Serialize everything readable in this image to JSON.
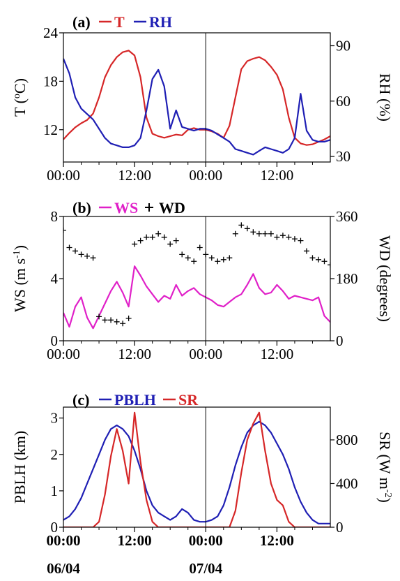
{
  "chart_data": [
    {
      "panel_tag": "(a)",
      "type": "line",
      "legend": [
        {
          "name": "T",
          "color": "#d62728",
          "marker": "line"
        },
        {
          "name": "RH",
          "color": "#1f1fb4",
          "marker": "line"
        }
      ],
      "x_ticks": [
        "00:00",
        "12:00",
        "00:00",
        "12:00"
      ],
      "x_range_hours": [
        0,
        45
      ],
      "ylabel_left": {
        "main": "T (",
        "sup": "o",
        "rest": "C)"
      },
      "ylabel_right": "RH (%)",
      "yticks_left": [
        "12",
        "18",
        "24"
      ],
      "yticks_right": [
        "30",
        "60",
        "90"
      ],
      "ylim_left": [
        8,
        24
      ],
      "ylim_right": [
        27,
        97
      ],
      "series": [
        {
          "name": "T",
          "axis": "left",
          "color": "#d62728",
          "x": [
            0,
            1,
            2,
            3,
            4,
            5,
            6,
            7,
            8,
            9,
            10,
            11,
            12,
            13,
            14,
            15,
            16,
            17,
            18,
            19,
            20,
            21,
            22,
            23,
            24,
            25,
            26,
            27,
            28,
            29,
            30,
            31,
            32,
            33,
            34,
            35,
            36,
            37,
            38,
            39,
            40,
            41,
            42,
            43,
            44,
            45
          ],
          "y": [
            10.8,
            11.6,
            12.3,
            12.8,
            13.2,
            14.0,
            16.0,
            18.5,
            20.0,
            21.0,
            21.6,
            21.8,
            21.2,
            18.5,
            13.5,
            11.5,
            11.2,
            11.0,
            11.2,
            11.4,
            11.3,
            12.0,
            12.2,
            12.0,
            12.0,
            11.8,
            11.5,
            11.0,
            12.5,
            16.0,
            19.5,
            20.5,
            20.8,
            21.0,
            20.6,
            19.8,
            18.8,
            17.0,
            13.5,
            11.0,
            10.3,
            10.1,
            10.2,
            10.5,
            10.8,
            11.2
          ]
        },
        {
          "name": "RH",
          "axis": "right",
          "color": "#1f1fb4",
          "x": [
            0,
            1,
            2,
            3,
            4,
            5,
            6,
            7,
            8,
            9,
            10,
            11,
            12,
            13,
            14,
            15,
            16,
            17,
            18,
            19,
            20,
            21,
            22,
            23,
            24,
            25,
            26,
            27,
            28,
            29,
            30,
            31,
            32,
            33,
            34,
            35,
            36,
            37,
            38,
            39,
            40,
            41,
            42,
            43,
            44,
            45
          ],
          "y": [
            83,
            75,
            62,
            56,
            53,
            50,
            45,
            40,
            37,
            36,
            35,
            35,
            36,
            40,
            55,
            72,
            77,
            68,
            45,
            55,
            46,
            45,
            44,
            45,
            45,
            44,
            42,
            40,
            38,
            34,
            33,
            32,
            31,
            33,
            35,
            34,
            33,
            32,
            34,
            40,
            64,
            44,
            39,
            38,
            38,
            39
          ]
        }
      ]
    },
    {
      "panel_tag": "(b)",
      "type": "line",
      "legend": [
        {
          "name": "WS",
          "color": "#e020c8",
          "marker": "line"
        },
        {
          "name": "WD",
          "color": "#000000",
          "marker": "+"
        }
      ],
      "x_ticks": [
        "00:00",
        "12:00",
        "00:00",
        "12:00"
      ],
      "x_range_hours": [
        0,
        45
      ],
      "ylabel_left": {
        "main": "WS (m s",
        "sup": "-1",
        "rest": ")"
      },
      "ylabel_right": "WD (degrees)",
      "yticks_left": [
        "0",
        "4",
        "8"
      ],
      "yticks_right": [
        "0",
        "180",
        "360"
      ],
      "ylim_left": [
        0,
        8
      ],
      "ylim_right": [
        0,
        360
      ],
      "series": [
        {
          "name": "WS",
          "axis": "left",
          "color": "#e020c8",
          "x": [
            0,
            1,
            2,
            3,
            4,
            5,
            6,
            7,
            8,
            9,
            10,
            11,
            12,
            13,
            14,
            15,
            16,
            17,
            18,
            19,
            20,
            21,
            22,
            23,
            24,
            25,
            26,
            27,
            28,
            29,
            30,
            31,
            32,
            33,
            34,
            35,
            36,
            37,
            38,
            39,
            40,
            41,
            42,
            43,
            44,
            45
          ],
          "y": [
            1.8,
            0.9,
            2.2,
            2.8,
            1.5,
            0.8,
            1.6,
            2.4,
            3.2,
            3.8,
            3.1,
            2.2,
            4.8,
            4.2,
            3.5,
            3.0,
            2.5,
            2.9,
            2.7,
            3.6,
            2.9,
            3.2,
            3.4,
            3.0,
            2.8,
            2.6,
            2.3,
            2.2,
            2.5,
            2.8,
            3.0,
            3.6,
            4.3,
            3.4,
            3.0,
            3.1,
            3.6,
            3.2,
            2.7,
            2.9,
            2.8,
            2.7,
            2.6,
            2.8,
            1.6,
            1.2
          ]
        },
        {
          "name": "WD",
          "axis": "right",
          "color": "#000000",
          "marker": "+",
          "x": [
            0,
            1,
            2,
            3,
            4,
            5,
            6,
            7,
            8,
            9,
            10,
            11,
            12,
            13,
            14,
            15,
            16,
            17,
            18,
            19,
            20,
            21,
            22,
            23,
            24,
            25,
            26,
            27,
            28,
            29,
            30,
            31,
            32,
            33,
            34,
            35,
            36,
            37,
            38,
            39,
            40,
            41,
            42,
            43,
            44,
            45
          ],
          "y": [
            320,
            270,
            260,
            250,
            245,
            240,
            70,
            60,
            60,
            55,
            50,
            65,
            280,
            290,
            300,
            300,
            310,
            300,
            280,
            290,
            250,
            240,
            230,
            270,
            250,
            240,
            230,
            235,
            240,
            310,
            335,
            325,
            315,
            310,
            310,
            310,
            300,
            305,
            300,
            295,
            290,
            260,
            240,
            235,
            230,
            220
          ]
        }
      ]
    },
    {
      "panel_tag": "(c)",
      "type": "line",
      "legend": [
        {
          "name": "PBLH",
          "color": "#1f1fb4",
          "marker": "line"
        },
        {
          "name": "SR",
          "color": "#d62728",
          "marker": "line"
        }
      ],
      "x_ticks": [
        "00:00",
        "12:00",
        "00:00",
        "12:00"
      ],
      "x_ticks_bold": true,
      "date_labels": [
        {
          "text": "06/04",
          "at_hour": 0
        },
        {
          "text": "07/04",
          "at_hour": 24
        }
      ],
      "x_range_hours": [
        0,
        45
      ],
      "ylabel_left": "PBLH (km)",
      "ylabel_right": {
        "main": "SR (W m",
        "sup": "-2",
        "rest": ")"
      },
      "yticks_left": [
        "0",
        "1",
        "2",
        "3"
      ],
      "yticks_right": [
        "0",
        "400",
        "800"
      ],
      "ylim_left": [
        0,
        3.3
      ],
      "ylim_right": [
        0,
        1100
      ],
      "series": [
        {
          "name": "PBLH",
          "axis": "left",
          "color": "#1f1fb4",
          "x": [
            0,
            1,
            2,
            3,
            4,
            5,
            6,
            7,
            8,
            9,
            10,
            11,
            12,
            13,
            14,
            15,
            16,
            17,
            18,
            19,
            20,
            21,
            22,
            23,
            24,
            25,
            26,
            27,
            28,
            29,
            30,
            31,
            32,
            33,
            34,
            35,
            36,
            37,
            38,
            39,
            40,
            41,
            42,
            43,
            44,
            45
          ],
          "y": [
            0.2,
            0.3,
            0.5,
            0.8,
            1.2,
            1.6,
            2.0,
            2.4,
            2.7,
            2.8,
            2.7,
            2.5,
            2.1,
            1.6,
            1.0,
            0.6,
            0.4,
            0.3,
            0.2,
            0.3,
            0.5,
            0.4,
            0.2,
            0.15,
            0.15,
            0.2,
            0.3,
            0.6,
            1.1,
            1.7,
            2.2,
            2.6,
            2.8,
            2.9,
            2.8,
            2.6,
            2.3,
            2.0,
            1.6,
            1.1,
            0.7,
            0.4,
            0.2,
            0.1,
            0.1,
            0.1
          ]
        },
        {
          "name": "SR",
          "axis": "right",
          "color": "#d62728",
          "x": [
            0,
            1,
            2,
            3,
            4,
            5,
            6,
            7,
            8,
            9,
            10,
            11,
            12,
            13,
            14,
            15,
            16,
            17,
            18,
            19,
            20,
            21,
            22,
            23,
            24,
            25,
            26,
            27,
            28,
            29,
            30,
            31,
            32,
            33,
            34,
            35,
            36,
            37,
            38,
            39,
            40,
            41,
            42,
            43,
            44,
            45
          ],
          "y": [
            0,
            0,
            0,
            0,
            0,
            0,
            50,
            300,
            650,
            900,
            700,
            400,
            1050,
            600,
            250,
            50,
            0,
            0,
            0,
            0,
            0,
            0,
            0,
            0,
            0,
            0,
            0,
            0,
            0,
            150,
            500,
            800,
            950,
            1050,
            700,
            400,
            250,
            200,
            50,
            0,
            0,
            0,
            0,
            0,
            0,
            0
          ]
        }
      ]
    }
  ]
}
